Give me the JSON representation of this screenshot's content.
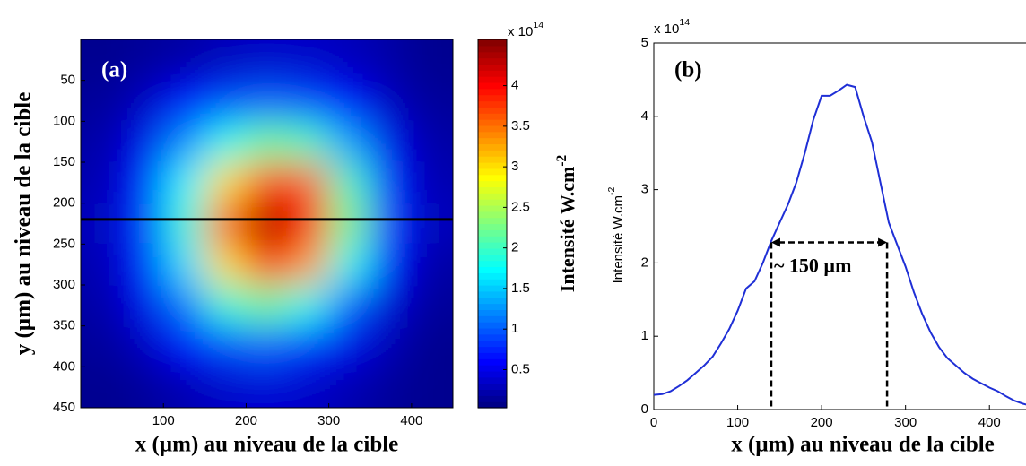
{
  "chart_data": [
    {
      "type": "heatmap",
      "label": "(a)",
      "xlabel": "x (µm) au niveau de la cible",
      "ylabel": "y (µm) au niveau de la cible",
      "xlim": [
        0,
        450
      ],
      "ylim": [
        0,
        450
      ],
      "xticks": [
        100,
        200,
        300,
        400
      ],
      "yticks": [
        50,
        100,
        150,
        200,
        250,
        300,
        350,
        400,
        450
      ],
      "x": [
        25,
        75,
        125,
        175,
        225,
        275,
        325,
        375,
        425
      ],
      "y": [
        25,
        75,
        125,
        175,
        225,
        275,
        325,
        375,
        425
      ],
      "z": [
        [
          0.1,
          0.15,
          0.2,
          0.3,
          0.35,
          0.35,
          0.3,
          0.2,
          0.1
        ],
        [
          0.15,
          0.3,
          0.6,
          0.9,
          1.0,
          0.9,
          0.6,
          0.3,
          0.15
        ],
        [
          0.2,
          0.5,
          1.2,
          1.8,
          2.2,
          2.0,
          1.3,
          0.5,
          0.2
        ],
        [
          0.25,
          0.7,
          1.7,
          3.0,
          3.8,
          3.6,
          2.0,
          0.7,
          0.25
        ],
        [
          0.3,
          0.8,
          1.9,
          3.6,
          4.4,
          4.0,
          2.3,
          0.8,
          0.3
        ],
        [
          0.25,
          0.7,
          1.6,
          3.0,
          3.9,
          3.3,
          1.8,
          0.6,
          0.2
        ],
        [
          0.2,
          0.5,
          1.1,
          1.9,
          2.2,
          1.8,
          1.0,
          0.4,
          0.15
        ],
        [
          0.15,
          0.3,
          0.6,
          0.9,
          1.0,
          0.8,
          0.5,
          0.25,
          0.1
        ],
        [
          0.1,
          0.15,
          0.25,
          0.35,
          0.4,
          0.35,
          0.25,
          0.15,
          0.1
        ]
      ],
      "colormap": "jet",
      "cut_line_y": 220,
      "colorbar": {
        "label": "Intensité W.cm",
        "label_sup": "-2",
        "exponent_base": "x 10",
        "exponent_power": "14",
        "clim": [
          0.03,
          4.57
        ],
        "ticks": [
          0.5,
          1,
          1.5,
          2,
          2.5,
          3,
          3.5,
          4
        ]
      }
    },
    {
      "type": "line",
      "label": "(b)",
      "xlabel": "x (µm) au niveau de la cible",
      "ylabel": "Intensité W.cm",
      "ylabel_sup": "-2",
      "exponent_base": "x 10",
      "exponent_power": "14",
      "xlim": [
        0,
        450
      ],
      "ylim": [
        0,
        5
      ],
      "xticks": [
        0,
        100,
        200,
        300,
        400
      ],
      "yticks": [
        0,
        1,
        2,
        3,
        4,
        5
      ],
      "x": [
        0,
        10,
        20,
        30,
        40,
        50,
        60,
        70,
        80,
        90,
        100,
        110,
        120,
        130,
        140,
        150,
        160,
        170,
        180,
        190,
        200,
        210,
        220,
        230,
        240,
        250,
        260,
        270,
        280,
        290,
        300,
        310,
        320,
        330,
        340,
        350,
        360,
        370,
        380,
        390,
        400,
        410,
        420,
        430,
        440,
        450
      ],
      "series": [
        {
          "color": "#1f2fd6",
          "values": [
            0.2,
            0.21,
            0.25,
            0.32,
            0.4,
            0.5,
            0.6,
            0.72,
            0.9,
            1.1,
            1.35,
            1.65,
            1.75,
            2.0,
            2.3,
            2.55,
            2.8,
            3.1,
            3.5,
            3.95,
            4.28,
            4.28,
            4.35,
            4.43,
            4.4,
            4.0,
            3.65,
            3.1,
            2.55,
            2.25,
            1.95,
            1.6,
            1.3,
            1.05,
            0.85,
            0.7,
            0.6,
            0.5,
            0.42,
            0.36,
            0.3,
            0.25,
            0.18,
            0.12,
            0.08,
            0.05
          ]
        }
      ],
      "annotation": {
        "text": "~ 150 µm",
        "x": [
          140,
          278
        ],
        "y": 2.28
      }
    }
  ]
}
